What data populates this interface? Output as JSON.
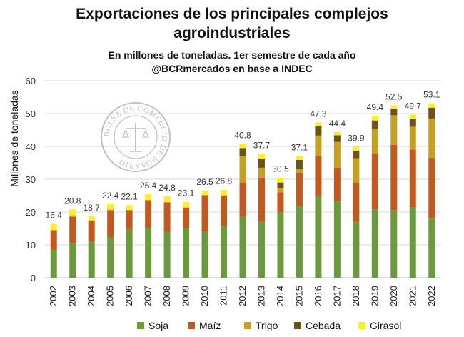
{
  "chart_data": {
    "type": "bar",
    "stacked": true,
    "title_lines": [
      "Exportaciones de los principales complejos",
      "agroindustriales"
    ],
    "subtitle_lines": [
      "En millones de toneladas. 1er semestre de cada año",
      "@BCRmercados en base a INDEC"
    ],
    "ylabel": "Millones de toneladas",
    "xlabel": "",
    "ylim": [
      0,
      60
    ],
    "yticks": [
      0,
      10,
      20,
      30,
      40,
      50,
      60
    ],
    "grid": true,
    "legend_position": "bottom",
    "watermark_text": "BOLSA DE COMERCIO DE ROSARIO",
    "categories": [
      "2002",
      "2003",
      "2004",
      "2005",
      "2006",
      "2007",
      "2008",
      "2009",
      "2010",
      "2011",
      "2012",
      "2013",
      "2014",
      "2015",
      "2016",
      "2017",
      "2018",
      "2019",
      "2020",
      "2021",
      "2022"
    ],
    "totals": [
      16.4,
      20.8,
      18.7,
      22.4,
      22.1,
      25.4,
      24.8,
      23.1,
      26.5,
      26.8,
      40.8,
      37.7,
      30.5,
      37.1,
      47.3,
      44.4,
      39.9,
      49.4,
      52.5,
      49.7,
      53.1
    ],
    "total_labels": [
      "16.4",
      "20.8",
      "18.7",
      "22.4",
      "22.1",
      "25.4",
      "24.8",
      "23.1",
      "26.5",
      "26.8",
      "40.8",
      "37.7",
      "30.5",
      "37.1",
      "47.3",
      "44.4",
      "39.9",
      "49.4",
      "52.5",
      "49.7",
      "53.1"
    ],
    "series": [
      {
        "name": "Soja",
        "color": "#6a9a3a",
        "values": [
          8.5,
          10.5,
          11.0,
          12.5,
          14.8,
          15.2,
          14.0,
          15.2,
          14.0,
          15.8,
          18.5,
          17.0,
          20.0,
          21.8,
          25.0,
          23.3,
          17.0,
          20.8,
          20.5,
          21.5,
          18.0
        ]
      },
      {
        "name": "Maíz",
        "color": "#c5581c",
        "values": [
          5.8,
          8.0,
          6.2,
          8.0,
          5.5,
          8.2,
          8.8,
          6.0,
          11.0,
          9.0,
          10.5,
          13.5,
          6.0,
          10.0,
          12.0,
          10.2,
          12.0,
          17.0,
          20.0,
          17.5,
          18.5
        ]
      },
      {
        "name": "Trigo",
        "color": "#c8a020",
        "values": [
          0.3,
          0.5,
          0.3,
          0.3,
          0.4,
          0.3,
          0.3,
          0.2,
          0.2,
          0.3,
          8.0,
          3.0,
          1.2,
          1.3,
          6.3,
          7.9,
          7.4,
          7.6,
          9.0,
          7.0,
          12.0
        ]
      },
      {
        "name": "Cebada",
        "color": "#6a5418",
        "values": [
          0.0,
          0.0,
          0.0,
          0.0,
          0.0,
          0.0,
          0.0,
          0.0,
          0.0,
          0.0,
          2.5,
          2.7,
          1.8,
          2.8,
          2.8,
          2.0,
          2.3,
          2.5,
          2.0,
          2.5,
          3.3
        ]
      },
      {
        "name": "Girasol",
        "color": "#ffee22",
        "values": [
          1.8,
          1.8,
          1.2,
          1.6,
          1.4,
          1.7,
          1.7,
          1.7,
          1.3,
          1.7,
          1.3,
          1.5,
          1.5,
          1.2,
          1.2,
          1.0,
          1.2,
          1.5,
          1.0,
          1.2,
          1.3
        ]
      }
    ]
  }
}
